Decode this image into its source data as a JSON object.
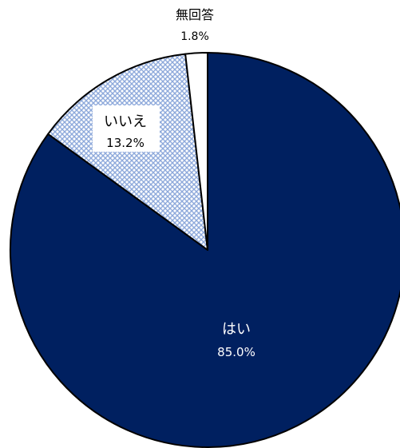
{
  "chart_data": {
    "type": "pie",
    "start_angle_deg": 0,
    "direction": "clockwise",
    "slices": [
      {
        "label": "はい",
        "value": 85.0,
        "value_label": "85.0%",
        "fill": "#002060",
        "pattern": "solid"
      },
      {
        "label": "いいえ",
        "value": 13.2,
        "value_label": "13.2%",
        "fill": "#8EA9DB",
        "pattern": "crosshatch"
      },
      {
        "label": "無回答",
        "value": 1.8,
        "value_label": "1.8%",
        "fill": "#FFFFFF",
        "pattern": "solid"
      }
    ]
  },
  "colors": {
    "outline": "#000000",
    "label_on_dark": "#FFFFFF",
    "label_on_light": "#000000",
    "label_box_fill": "#FFFFFF"
  }
}
